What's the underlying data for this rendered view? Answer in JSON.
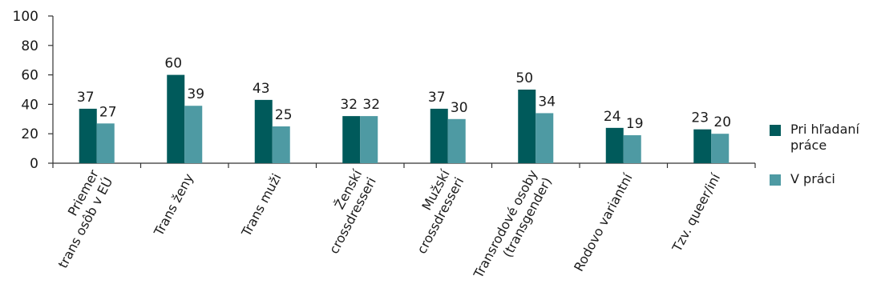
{
  "chart_data": {
    "type": "bar",
    "title": "",
    "xlabel": "",
    "ylabel": "",
    "ylim": [
      0,
      100
    ],
    "yticks": [
      0,
      20,
      40,
      60,
      80,
      100
    ],
    "grid": false,
    "legend_position": "right",
    "categories": [
      [
        "Priemer",
        "trans osôb v EÚ"
      ],
      [
        "Trans ženy"
      ],
      [
        "Trans muži"
      ],
      [
        "Ženskí",
        "crossdresseri"
      ],
      [
        "Mužskí",
        "crossdresseri"
      ],
      [
        "Transrodové osoby",
        "(transgender)"
      ],
      [
        "Rodovo variantní"
      ],
      [
        "Tzv. queer/iní"
      ]
    ],
    "series": [
      {
        "name": [
          "Pri hľadaní",
          "práce"
        ],
        "color": "#005a5b",
        "values": [
          37,
          60,
          43,
          32,
          37,
          50,
          24,
          23
        ]
      },
      {
        "name": [
          "V práci"
        ],
        "color": "#4e9aa3",
        "values": [
          27,
          39,
          25,
          32,
          30,
          34,
          19,
          20
        ]
      }
    ]
  }
}
